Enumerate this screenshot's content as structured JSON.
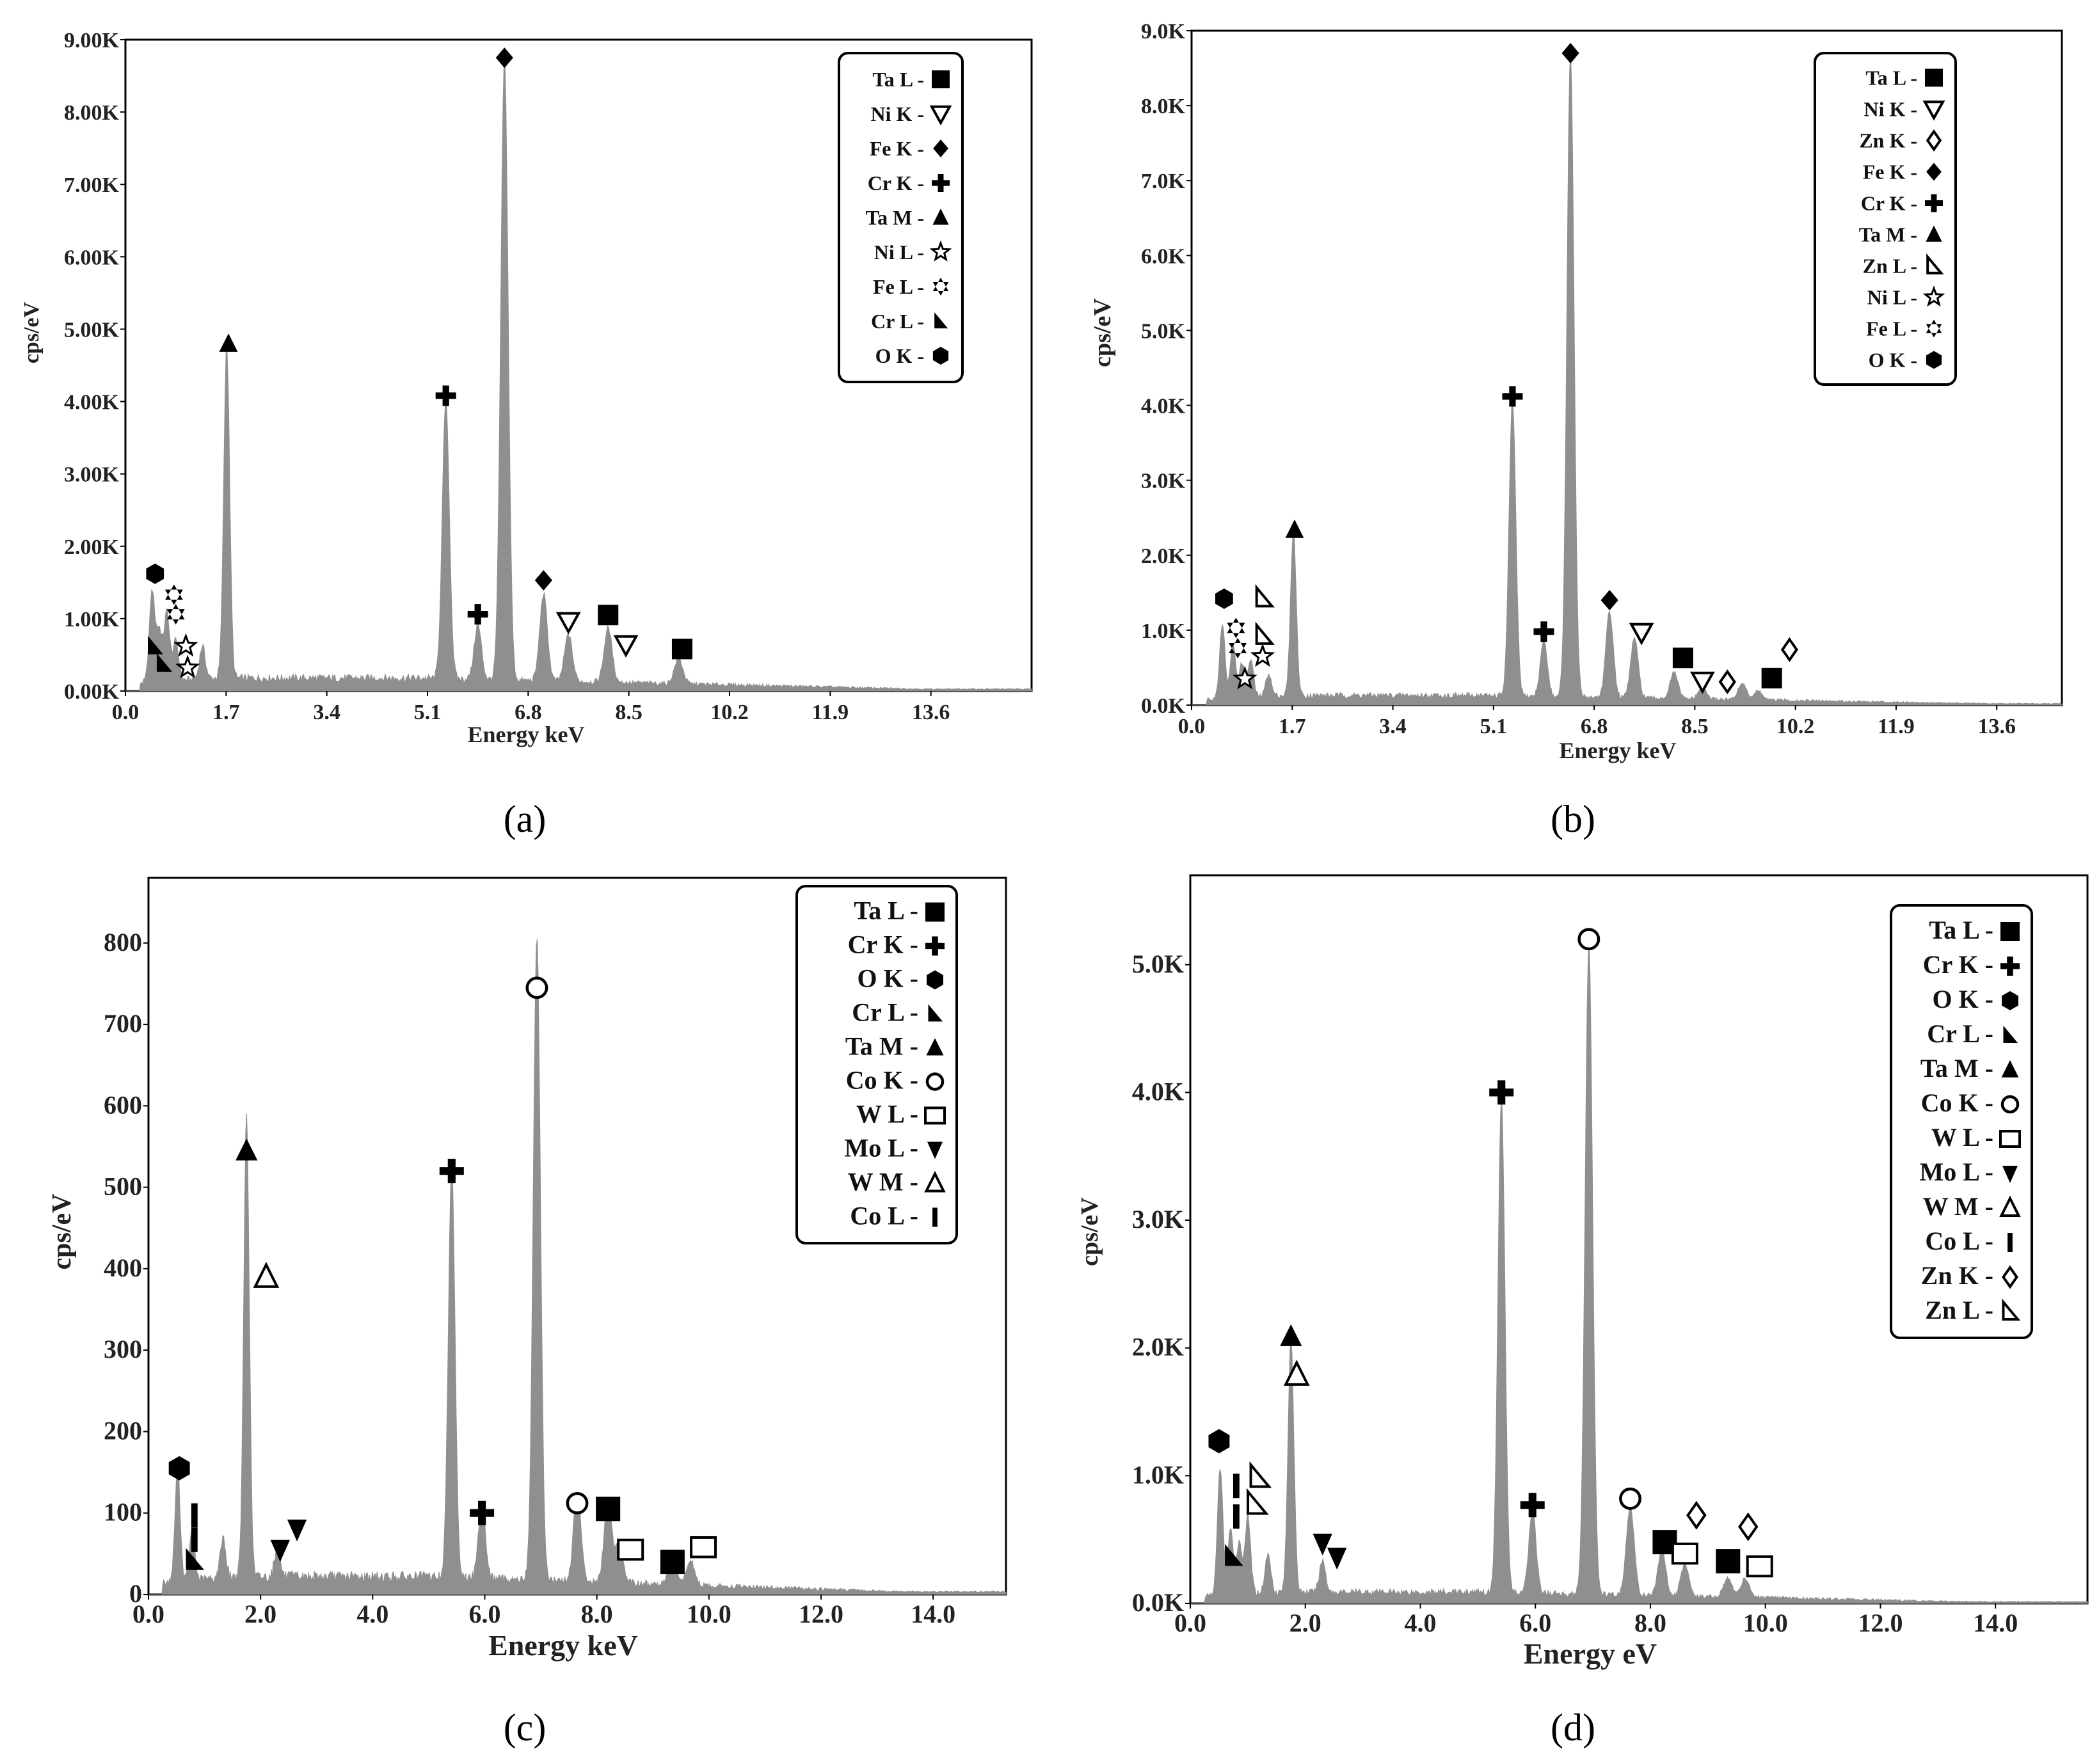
{
  "figure": {
    "panel_labels": [
      "(a)",
      "(b)",
      "(c)",
      "(d)"
    ],
    "colors": {
      "spectrum": "#8f8f8f",
      "marker": "#000000",
      "frame": "#000000"
    }
  },
  "chart_data": [
    {
      "type": "area",
      "panel": "(a)",
      "title": "",
      "xlabel": "Energy keV",
      "ylabel": "cps/eV",
      "xlim": [
        0,
        15.3
      ],
      "ylim": [
        0,
        9000
      ],
      "xticks": [
        0,
        1.7,
        3.4,
        5.1,
        6.8,
        8.5,
        10.2,
        11.9,
        13.6
      ],
      "xtick_labels": [
        "0.0",
        "1.7",
        "3.4",
        "5.1",
        "6.8",
        "8.5",
        "10.2",
        "11.9",
        "13.6"
      ],
      "yticks": [
        0,
        1000,
        2000,
        3000,
        4000,
        5000,
        6000,
        7000,
        8000,
        9000
      ],
      "ytick_labels": [
        "0.00K",
        "1.00K",
        "2.00K",
        "3.00K",
        "4.00K",
        "5.00K",
        "6.00K",
        "7.00K",
        "8.00K",
        "9.00K"
      ],
      "baseline": 180,
      "peaks": [
        {
          "x": 0.45,
          "y": 1250
        },
        {
          "x": 0.57,
          "y": 700
        },
        {
          "x": 0.7,
          "y": 950
        },
        {
          "x": 0.85,
          "y": 550
        },
        {
          "x": 1.3,
          "y": 450
        },
        {
          "x": 1.71,
          "y": 4600
        },
        {
          "x": 5.41,
          "y": 3850
        },
        {
          "x": 5.95,
          "y": 750
        },
        {
          "x": 6.4,
          "y": 8600
        },
        {
          "x": 7.06,
          "y": 1200
        },
        {
          "x": 7.48,
          "y": 650
        },
        {
          "x": 8.15,
          "y": 750
        },
        {
          "x": 9.34,
          "y": 350
        }
      ],
      "markers": [
        {
          "symbol": "hexagon",
          "x": 0.5,
          "y": 1620
        },
        {
          "symbol": "rtri",
          "x": 0.5,
          "y": 620
        },
        {
          "symbol": "rtri",
          "x": 0.65,
          "y": 380
        },
        {
          "symbol": "star6",
          "x": 0.82,
          "y": 1330
        },
        {
          "symbol": "star6",
          "x": 0.85,
          "y": 1060
        },
        {
          "symbol": "star5o",
          "x": 1.02,
          "y": 620
        },
        {
          "symbol": "star5o",
          "x": 1.05,
          "y": 320
        },
        {
          "symbol": "triangle",
          "x": 1.74,
          "y": 4800
        },
        {
          "symbol": "cross",
          "x": 5.41,
          "y": 4080
        },
        {
          "symbol": "cross",
          "x": 5.95,
          "y": 1060
        },
        {
          "symbol": "diamond",
          "x": 6.4,
          "y": 8750
        },
        {
          "symbol": "diamond",
          "x": 7.06,
          "y": 1530
        },
        {
          "symbol": "tridown",
          "x": 7.48,
          "y": 960
        },
        {
          "symbol": "square",
          "x": 8.15,
          "y": 1050
        },
        {
          "symbol": "tridown",
          "x": 8.45,
          "y": 640
        },
        {
          "symbol": "square",
          "x": 9.4,
          "y": 580
        }
      ],
      "legend": [
        {
          "label": "Ta L -",
          "symbol": "square"
        },
        {
          "label": "Ni K -",
          "symbol": "tridown"
        },
        {
          "label": "Fe K -",
          "symbol": "diamond"
        },
        {
          "label": "Cr K -",
          "symbol": "cross"
        },
        {
          "label": "Ta M -",
          "symbol": "triangle"
        },
        {
          "label": "Ni L -",
          "symbol": "star5o"
        },
        {
          "label": "Fe L -",
          "symbol": "star6"
        },
        {
          "label": "Cr L -",
          "symbol": "rtri"
        },
        {
          "label": "O K -",
          "symbol": "hexagon"
        }
      ]
    },
    {
      "type": "area",
      "panel": "(b)",
      "title": "",
      "xlabel": "Energy keV",
      "ylabel": "cps/eV",
      "xlim": [
        0,
        14.7
      ],
      "ylim": [
        0,
        9000
      ],
      "xticks": [
        0,
        1.7,
        3.4,
        5.1,
        6.8,
        8.5,
        10.2,
        11.9,
        13.6
      ],
      "xtick_labels": [
        "0.0",
        "1.7",
        "3.4",
        "5.1",
        "6.8",
        "8.5",
        "10.2",
        "11.9",
        "13.6"
      ],
      "yticks": [
        0,
        1000,
        2000,
        3000,
        4000,
        5000,
        6000,
        7000,
        8000,
        9000
      ],
      "ytick_labels": [
        "0.0K",
        "1.0K",
        "2.0K",
        "3.0K",
        "4.0K",
        "5.0K",
        "6.0K",
        "7.0K",
        "8.0K",
        "9.0K"
      ],
      "baseline": 130,
      "peaks": [
        {
          "x": 0.52,
          "y": 1000
        },
        {
          "x": 0.7,
          "y": 700
        },
        {
          "x": 0.85,
          "y": 450
        },
        {
          "x": 1.0,
          "y": 500
        },
        {
          "x": 1.3,
          "y": 300
        },
        {
          "x": 1.72,
          "y": 2200
        },
        {
          "x": 5.42,
          "y": 3950
        },
        {
          "x": 5.95,
          "y": 750
        },
        {
          "x": 6.4,
          "y": 8600
        },
        {
          "x": 7.06,
          "y": 1150
        },
        {
          "x": 7.48,
          "y": 800
        },
        {
          "x": 8.15,
          "y": 350
        },
        {
          "x": 8.63,
          "y": 150
        },
        {
          "x": 9.3,
          "y": 220
        },
        {
          "x": 9.57,
          "y": 120
        }
      ],
      "markers": [
        {
          "symbol": "hexagon",
          "x": 0.55,
          "y": 1420
        },
        {
          "symbol": "star6",
          "x": 0.75,
          "y": 1030
        },
        {
          "symbol": "star6",
          "x": 0.78,
          "y": 760
        },
        {
          "symbol": "star5o",
          "x": 0.9,
          "y": 350
        },
        {
          "symbol": "rtrio",
          "x": 1.22,
          "y": 1430
        },
        {
          "symbol": "rtrio",
          "x": 1.22,
          "y": 930
        },
        {
          "symbol": "star5o",
          "x": 1.2,
          "y": 650
        },
        {
          "symbol": "triangle",
          "x": 1.74,
          "y": 2340
        },
        {
          "symbol": "cross",
          "x": 5.42,
          "y": 4120
        },
        {
          "symbol": "cross",
          "x": 5.95,
          "y": 980
        },
        {
          "symbol": "diamond",
          "x": 6.4,
          "y": 8700
        },
        {
          "symbol": "diamond",
          "x": 7.06,
          "y": 1400
        },
        {
          "symbol": "tridown",
          "x": 7.6,
          "y": 970
        },
        {
          "symbol": "square",
          "x": 8.3,
          "y": 630
        },
        {
          "symbol": "tridown",
          "x": 8.63,
          "y": 320
        },
        {
          "symbol": "diamondo",
          "x": 9.05,
          "y": 310
        },
        {
          "symbol": "square",
          "x": 9.8,
          "y": 360
        },
        {
          "symbol": "diamondo",
          "x": 10.1,
          "y": 740
        }
      ],
      "legend": [
        {
          "label": "Ta L -",
          "symbol": "square"
        },
        {
          "label": "Ni K -",
          "symbol": "tridown"
        },
        {
          "label": "Zn K -",
          "symbol": "diamondo"
        },
        {
          "label": "Fe K -",
          "symbol": "diamond"
        },
        {
          "label": "Cr K -",
          "symbol": "cross"
        },
        {
          "label": "Ta M -",
          "symbol": "triangle"
        },
        {
          "label": "Zn L -",
          "symbol": "rtrio"
        },
        {
          "label": "Ni L -",
          "symbol": "star5o"
        },
        {
          "label": "Fe L -",
          "symbol": "star6"
        },
        {
          "label": "O K -",
          "symbol": "hexagon"
        }
      ]
    },
    {
      "type": "area",
      "panel": "(c)",
      "title": "",
      "xlabel": "Energy keV",
      "ylabel": "cps/eV",
      "xlim": [
        0,
        15.3
      ],
      "ylim": [
        0,
        880
      ],
      "xticks": [
        0,
        2,
        4,
        6,
        8,
        10,
        12,
        14
      ],
      "xtick_labels": [
        "0.0",
        "2.0",
        "4.0",
        "6.0",
        "8.0",
        "10.0",
        "12.0",
        "14.0"
      ],
      "yticks": [
        0,
        100,
        200,
        300,
        400,
        500,
        600,
        700,
        800
      ],
      "ytick_labels": [
        "0",
        "100",
        "200",
        "300",
        "400",
        "500",
        "600",
        "700",
        "800"
      ],
      "baseline": 22,
      "peaks": [
        {
          "x": 0.52,
          "y": 140
        },
        {
          "x": 0.78,
          "y": 60
        },
        {
          "x": 1.33,
          "y": 50
        },
        {
          "x": 1.75,
          "y": 570
        },
        {
          "x": 2.3,
          "y": 35
        },
        {
          "x": 5.41,
          "y": 510
        },
        {
          "x": 5.95,
          "y": 95
        },
        {
          "x": 6.93,
          "y": 790
        },
        {
          "x": 7.65,
          "y": 110
        },
        {
          "x": 8.2,
          "y": 100
        },
        {
          "x": 8.4,
          "y": 50
        },
        {
          "x": 9.35,
          "y": 30
        },
        {
          "x": 9.67,
          "y": 30
        }
      ],
      "markers": [
        {
          "symbol": "hexagon",
          "x": 0.55,
          "y": 155
        },
        {
          "symbol": "bar",
          "x": 0.82,
          "y": 97
        },
        {
          "symbol": "bar",
          "x": 0.82,
          "y": 67
        },
        {
          "symbol": "rtri",
          "x": 0.82,
          "y": 42
        },
        {
          "symbol": "triangle",
          "x": 1.75,
          "y": 545
        },
        {
          "symbol": "triangleo",
          "x": 2.1,
          "y": 390
        },
        {
          "symbol": "tridownf",
          "x": 2.35,
          "y": 55
        },
        {
          "symbol": "tridownf",
          "x": 2.65,
          "y": 80
        },
        {
          "symbol": "cross",
          "x": 5.41,
          "y": 520
        },
        {
          "symbol": "cross",
          "x": 5.95,
          "y": 100
        },
        {
          "symbol": "circle",
          "x": 6.93,
          "y": 745
        },
        {
          "symbol": "circle",
          "x": 7.65,
          "y": 112
        },
        {
          "symbol": "square",
          "x": 8.2,
          "y": 105
        },
        {
          "symbol": "squareo",
          "x": 8.6,
          "y": 55
        },
        {
          "symbol": "square",
          "x": 9.35,
          "y": 40
        },
        {
          "symbol": "squareo",
          "x": 9.9,
          "y": 58
        }
      ],
      "legend": [
        {
          "label": "Ta L -",
          "symbol": "square"
        },
        {
          "label": "Cr K -",
          "symbol": "cross"
        },
        {
          "label": "O K -",
          "symbol": "hexagon"
        },
        {
          "label": "Cr L -",
          "symbol": "rtri"
        },
        {
          "label": "Ta M -",
          "symbol": "triangle"
        },
        {
          "label": "Co K -",
          "symbol": "circle"
        },
        {
          "label": "W L -",
          "symbol": "squareo"
        },
        {
          "label": "Mo L -",
          "symbol": "tridownf"
        },
        {
          "label": "W M -",
          "symbol": "triangleo"
        },
        {
          "label": "Co L -",
          "symbol": "bar"
        }
      ]
    },
    {
      "type": "area",
      "panel": "(d)",
      "title": "",
      "xlabel": "Energy eV",
      "ylabel": "cps/eV",
      "xlim": [
        0,
        15.6
      ],
      "ylim": [
        0,
        5700
      ],
      "xticks": [
        0,
        2,
        4,
        6,
        8,
        10,
        12,
        14
      ],
      "xtick_labels": [
        "0.0",
        "2.0",
        "4.0",
        "6.0",
        "8.0",
        "10.0",
        "12.0",
        "14.0"
      ],
      "yticks": [
        0,
        1000,
        2000,
        3000,
        4000,
        5000
      ],
      "ytick_labels": [
        "0.0K",
        "1.0K",
        "2.0K",
        "3.0K",
        "4.0K",
        "5.0K"
      ],
      "baseline": 90,
      "peaks": [
        {
          "x": 0.52,
          "y": 1000
        },
        {
          "x": 0.7,
          "y": 500
        },
        {
          "x": 0.85,
          "y": 400
        },
        {
          "x": 1.0,
          "y": 600
        },
        {
          "x": 1.35,
          "y": 300
        },
        {
          "x": 1.75,
          "y": 2000
        },
        {
          "x": 2.3,
          "y": 250
        },
        {
          "x": 5.41,
          "y": 3900
        },
        {
          "x": 5.95,
          "y": 650
        },
        {
          "x": 6.93,
          "y": 5100
        },
        {
          "x": 7.65,
          "y": 700
        },
        {
          "x": 8.2,
          "y": 350
        },
        {
          "x": 8.6,
          "y": 250
        },
        {
          "x": 9.35,
          "y": 150
        },
        {
          "x": 9.65,
          "y": 150
        }
      ],
      "markers": [
        {
          "symbol": "hexagon",
          "x": 0.5,
          "y": 1270
        },
        {
          "symbol": "bar",
          "x": 0.8,
          "y": 920
        },
        {
          "symbol": "bar",
          "x": 0.8,
          "y": 680
        },
        {
          "symbol": "rtri",
          "x": 0.75,
          "y": 370
        },
        {
          "symbol": "rtrio",
          "x": 1.2,
          "y": 990
        },
        {
          "symbol": "rtrio",
          "x": 1.15,
          "y": 780
        },
        {
          "symbol": "triangle",
          "x": 1.75,
          "y": 2090
        },
        {
          "symbol": "triangleo",
          "x": 1.85,
          "y": 1790
        },
        {
          "symbol": "tridownf",
          "x": 2.3,
          "y": 470
        },
        {
          "symbol": "tridownf",
          "x": 2.55,
          "y": 360
        },
        {
          "symbol": "cross",
          "x": 5.41,
          "y": 4000
        },
        {
          "symbol": "cross",
          "x": 5.95,
          "y": 770
        },
        {
          "symbol": "circle",
          "x": 6.93,
          "y": 5200
        },
        {
          "symbol": "circle",
          "x": 7.65,
          "y": 820
        },
        {
          "symbol": "square",
          "x": 8.25,
          "y": 480
        },
        {
          "symbol": "squareo",
          "x": 8.6,
          "y": 390
        },
        {
          "symbol": "diamondo",
          "x": 8.8,
          "y": 690
        },
        {
          "symbol": "square",
          "x": 9.35,
          "y": 330
        },
        {
          "symbol": "diamondo",
          "x": 9.7,
          "y": 600
        },
        {
          "symbol": "squareo",
          "x": 9.9,
          "y": 290
        }
      ],
      "legend": [
        {
          "label": "Ta L -",
          "symbol": "square"
        },
        {
          "label": "Cr K -",
          "symbol": "cross"
        },
        {
          "label": "O K -",
          "symbol": "hexagon"
        },
        {
          "label": "Cr L -",
          "symbol": "rtri"
        },
        {
          "label": "Ta M -",
          "symbol": "triangle"
        },
        {
          "label": "Co K -",
          "symbol": "circle"
        },
        {
          "label": "W L -",
          "symbol": "squareo"
        },
        {
          "label": "Mo L -",
          "symbol": "tridownf"
        },
        {
          "label": "W M -",
          "symbol": "triangleo"
        },
        {
          "label": "Co L -",
          "symbol": "bar"
        },
        {
          "label": "Zn K -",
          "symbol": "diamondo"
        },
        {
          "label": "Zn L -",
          "symbol": "rtrio"
        }
      ]
    }
  ]
}
